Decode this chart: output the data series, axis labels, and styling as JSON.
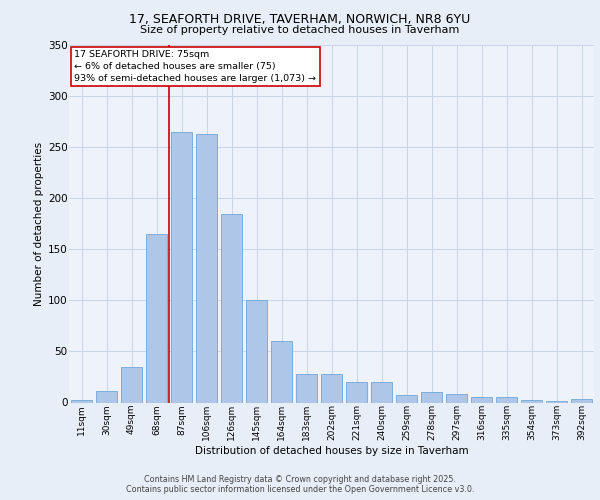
{
  "title_line1": "17, SEAFORTH DRIVE, TAVERHAM, NORWICH, NR8 6YU",
  "title_line2": "Size of property relative to detached houses in Taverham",
  "xlabel": "Distribution of detached houses by size in Taverham",
  "ylabel": "Number of detached properties",
  "categories": [
    "11sqm",
    "30sqm",
    "49sqm",
    "68sqm",
    "87sqm",
    "106sqm",
    "126sqm",
    "145sqm",
    "164sqm",
    "183sqm",
    "202sqm",
    "221sqm",
    "240sqm",
    "259sqm",
    "278sqm",
    "297sqm",
    "316sqm",
    "335sqm",
    "354sqm",
    "373sqm",
    "392sqm"
  ],
  "values": [
    2,
    11,
    35,
    165,
    265,
    263,
    185,
    100,
    60,
    28,
    28,
    20,
    20,
    7,
    10,
    8,
    5,
    5,
    2,
    1,
    3
  ],
  "bar_color": "#aec6e8",
  "bar_edge_color": "#5b9bd5",
  "vline_x_index": 3.5,
  "annotation_text": "17 SEAFORTH DRIVE: 75sqm\n← 6% of detached houses are smaller (75)\n93% of semi-detached houses are larger (1,073) →",
  "annotation_box_color": "#ffffff",
  "annotation_box_edge_color": "#cc0000",
  "vline_color": "#cc0000",
  "grid_color": "#c8d4e8",
  "background_color": "#e8eef8",
  "plot_bg_color": "#eef2fa",
  "footer_text": "Contains HM Land Registry data © Crown copyright and database right 2025.\nContains public sector information licensed under the Open Government Licence v3.0.",
  "ylim": [
    0,
    350
  ],
  "yticks": [
    0,
    50,
    100,
    150,
    200,
    250,
    300,
    350
  ]
}
